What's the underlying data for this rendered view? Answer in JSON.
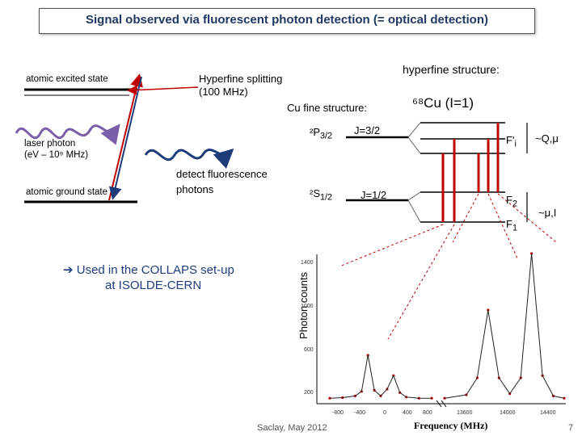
{
  "title": "Signal observed via fluorescent photon detection (= optical detection)",
  "left_diagram": {
    "excited_state": "atomic excited  state",
    "ground_state": "atomic ground state",
    "laser_label_1": "laser photon",
    "laser_label_2": "(eV – 10⁹ MHz)",
    "hyperfine_1": "Hyperfine splitting",
    "hyperfine_2": "(100 MHz)",
    "detect_1": "detect fluorescence",
    "detect_2": "photons"
  },
  "right_diagram": {
    "hf_structure": "hyperfine structure:",
    "cu_fine": "Cu fine structure:",
    "isotope": "⁶⁸Cu (I=1)",
    "p_state_main": "²P",
    "p_state_sub": "3/2",
    "s_state_main": "²S",
    "s_state_sub": "1/2",
    "j_upper": "J=3/2",
    "j_lower": "J=1/2",
    "f_upper_main": "F'",
    "f_upper_sub": "i",
    "f2_main": "F",
    "f2_sub": "2",
    "f1_main": "F",
    "f1_sub": "1",
    "upper_box": "~Q,μ",
    "lower_box": "~μ,I"
  },
  "collaps_1": "➔ Used in the COLLAPS set-up",
  "collaps_2": "at ISOLDE-CERN",
  "footer": "Saclay, May 2012",
  "page_number": "7",
  "colors": {
    "title": "#203864",
    "arrow_red": "#c00000",
    "arrow_blue": "#1f3c7a",
    "laser_wave": "#7a5fa8",
    "fluor_wave": "#1f3c7a"
  },
  "chart_data": {
    "type": "line",
    "xlabel": "Frequency (MHz)",
    "ylabel": "Photon counts",
    "yticks": [
      "1400",
      "1000",
      "600",
      "200"
    ],
    "xticks": [
      "-800",
      "-400",
      "0",
      "400",
      "800",
      "13600",
      "14000",
      "14400"
    ],
    "ylim": [
      200,
      1500
    ],
    "panels": [
      {
        "x": [
          -800,
          -600,
          -400,
          -300,
          -200,
          -100,
          0,
          100,
          200,
          300,
          400,
          600,
          800
        ],
        "y": [
          220,
          225,
          240,
          280,
          600,
          290,
          240,
          300,
          420,
          270,
          230,
          220,
          220
        ]
      },
      {
        "x": [
          13400,
          13600,
          13700,
          13800,
          13900,
          14000,
          14100,
          14200,
          14300,
          14400,
          14500
        ],
        "y": [
          220,
          250,
          400,
          1000,
          400,
          260,
          400,
          1500,
          420,
          240,
          220
        ]
      }
    ]
  }
}
